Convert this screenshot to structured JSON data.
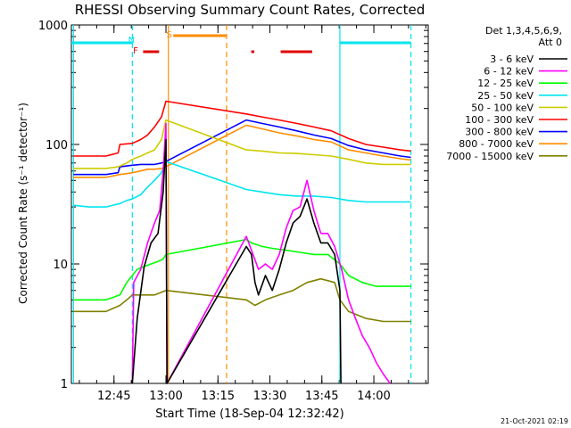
{
  "chart_data": {
    "type": "line",
    "title": "RHESSI Observing Summary Count Rates, Corrected",
    "xlabel": "Start Time (18-Sep-04 12:32:42)",
    "ylabel": "Corrected Count Rate (s⁻¹ detector⁻¹)",
    "yscale": "log",
    "ylim": [
      1,
      1000
    ],
    "xlim_minutes_after_start": [
      0,
      103
    ],
    "x_ticks": [
      "12:45",
      "13:00",
      "13:15",
      "13:30",
      "13:45",
      "14:00"
    ],
    "x_tick_minutes_after_start": [
      12.3,
      27.3,
      42.3,
      57.3,
      72.3,
      87.3
    ],
    "y_ticks": [
      "1",
      "10",
      "100",
      "1000"
    ],
    "y_tick_values": [
      1,
      10,
      100,
      1000
    ],
    "legend_header": [
      "Det 1,3,4,5,6,9,",
      "Att 0"
    ],
    "legend_position": "right, outside plot",
    "date_stamp": "21-Oct-2021 02:19",
    "markers": {
      "N": {
        "label": "N",
        "minute": 17.6,
        "color": "#00e5ee"
      },
      "S": {
        "label": "S",
        "minute": 28.5,
        "color": "#ff8c00"
      },
      "F": {
        "label": "F",
        "minute": 18.8,
        "color": "#e00000"
      }
    },
    "segments": [
      {
        "name": "night",
        "color": "#00e5ee",
        "ranges": [
          [
            0,
            17.6
          ],
          [
            77.5,
            98.0
          ]
        ]
      },
      {
        "name": "saa",
        "color": "#ff8c00",
        "ranges": [
          [
            29.4,
            44.8
          ]
        ]
      },
      {
        "name": "flare",
        "color": "#e00000",
        "ranges": [
          [
            20.7,
            25.3
          ],
          [
            51.9,
            52.8
          ],
          [
            60.4,
            69.5
          ]
        ]
      }
    ],
    "vlines": [
      {
        "minute": 0.6,
        "color": "#00e5ee",
        "style": "solid"
      },
      {
        "minute": 17.6,
        "color": "#00e5ee",
        "style": "dashed"
      },
      {
        "minute": 28.0,
        "color": "#ff8c00",
        "style": "solid"
      },
      {
        "minute": 44.8,
        "color": "#ff8c00",
        "style": "dashed"
      },
      {
        "minute": 77.5,
        "color": "#00e5ee",
        "style": "solid"
      },
      {
        "minute": 98.0,
        "color": "#00e5ee",
        "style": "dashed"
      }
    ],
    "series": [
      {
        "name": "3 - 6 keV",
        "color": "#000000",
        "points": [
          [
            17.6,
            1
          ],
          [
            19,
            3.5
          ],
          [
            21,
            9.5
          ],
          [
            23,
            15
          ],
          [
            25,
            18
          ],
          [
            26.5,
            40
          ],
          [
            27.3,
            110
          ],
          [
            27.6,
            1
          ],
          [
            50.5,
            14
          ],
          [
            52,
            12
          ],
          [
            53,
            7
          ],
          [
            54,
            5.5
          ],
          [
            56,
            8
          ],
          [
            58,
            6
          ],
          [
            60,
            9
          ],
          [
            62,
            15
          ],
          [
            64,
            22
          ],
          [
            66,
            25
          ],
          [
            68,
            35
          ],
          [
            70,
            22
          ],
          [
            72,
            15
          ],
          [
            74,
            15
          ],
          [
            76,
            12
          ],
          [
            77.5,
            6
          ],
          [
            77.8,
            1
          ]
        ]
      },
      {
        "name": "6 - 12 keV",
        "color": "#ff00ff",
        "points": [
          [
            17.6,
            1
          ],
          [
            18,
            7
          ],
          [
            20,
            9
          ],
          [
            22,
            15
          ],
          [
            24,
            22
          ],
          [
            25.5,
            28
          ],
          [
            26.5,
            60
          ],
          [
            27.3,
            150
          ],
          [
            27.6,
            1
          ],
          [
            50.5,
            17
          ],
          [
            52,
            13
          ],
          [
            54,
            9
          ],
          [
            56,
            10
          ],
          [
            58,
            9
          ],
          [
            60,
            12
          ],
          [
            62,
            20
          ],
          [
            64,
            28
          ],
          [
            66,
            30
          ],
          [
            68,
            50
          ],
          [
            70,
            28
          ],
          [
            72,
            18
          ],
          [
            74,
            18
          ],
          [
            76,
            14
          ],
          [
            78,
            9
          ],
          [
            80,
            5
          ],
          [
            82,
            3.5
          ],
          [
            84,
            2.5
          ],
          [
            86,
            2
          ],
          [
            88,
            1.5
          ],
          [
            90,
            1.2
          ],
          [
            92,
            1
          ]
        ]
      },
      {
        "name": "12 - 25 keV",
        "color": "#00ff00",
        "points": [
          [
            0.6,
            5
          ],
          [
            5,
            5
          ],
          [
            10,
            5
          ],
          [
            14,
            5.5
          ],
          [
            16,
            7
          ],
          [
            17.6,
            8
          ],
          [
            19,
            9
          ],
          [
            21,
            9.5
          ],
          [
            23,
            10
          ],
          [
            25,
            10.5
          ],
          [
            26.5,
            11
          ],
          [
            27.3,
            12
          ],
          [
            50.5,
            16
          ],
          [
            52,
            15
          ],
          [
            55,
            14
          ],
          [
            58,
            13.5
          ],
          [
            62,
            13
          ],
          [
            66,
            12.5
          ],
          [
            70,
            12
          ],
          [
            74,
            12
          ],
          [
            77.5,
            10
          ],
          [
            80,
            8
          ],
          [
            84,
            7
          ],
          [
            88,
            6.5
          ],
          [
            92,
            6.5
          ],
          [
            98,
            6.5
          ]
        ]
      },
      {
        "name": "25 - 50 keV",
        "color": "#00e5ee",
        "points": [
          [
            0.6,
            31
          ],
          [
            5,
            30
          ],
          [
            10,
            30
          ],
          [
            14,
            32
          ],
          [
            16,
            34
          ],
          [
            17.6,
            35
          ],
          [
            20,
            38
          ],
          [
            22,
            44
          ],
          [
            24,
            50
          ],
          [
            26,
            58
          ],
          [
            27.3,
            72
          ],
          [
            50.5,
            42
          ],
          [
            55,
            40
          ],
          [
            60,
            38
          ],
          [
            65,
            37
          ],
          [
            70,
            37
          ],
          [
            75,
            36
          ],
          [
            80,
            34
          ],
          [
            85,
            33
          ],
          [
            90,
            33
          ],
          [
            95,
            33
          ],
          [
            98,
            33
          ]
        ]
      },
      {
        "name": "50 - 100 keV",
        "color": "#cccc00",
        "points": [
          [
            0.6,
            63
          ],
          [
            5,
            63
          ],
          [
            10,
            63
          ],
          [
            13.5,
            65
          ],
          [
            16,
            70
          ],
          [
            17.6,
            75
          ],
          [
            20,
            80
          ],
          [
            22,
            85
          ],
          [
            24,
            90
          ],
          [
            26,
            110
          ],
          [
            27.3,
            160
          ],
          [
            50.5,
            90
          ],
          [
            55,
            88
          ],
          [
            60,
            85
          ],
          [
            65,
            84
          ],
          [
            70,
            82
          ],
          [
            75,
            80
          ],
          [
            80,
            75
          ],
          [
            85,
            70
          ],
          [
            90,
            68
          ],
          [
            95,
            68
          ],
          [
            98,
            68
          ]
        ]
      },
      {
        "name": "100 - 300 keV",
        "color": "#ff0000",
        "points": [
          [
            0.6,
            80
          ],
          [
            5,
            80
          ],
          [
            10,
            80
          ],
          [
            13.5,
            85
          ],
          [
            14,
            100
          ],
          [
            17.6,
            102
          ],
          [
            20,
            110
          ],
          [
            22,
            120
          ],
          [
            24,
            140
          ],
          [
            26,
            170
          ],
          [
            27.3,
            230
          ],
          [
            50.5,
            180
          ],
          [
            55,
            170
          ],
          [
            60,
            160
          ],
          [
            65,
            150
          ],
          [
            70,
            140
          ],
          [
            75,
            130
          ],
          [
            80,
            112
          ],
          [
            85,
            100
          ],
          [
            90,
            95
          ],
          [
            95,
            90
          ],
          [
            98,
            88
          ]
        ]
      },
      {
        "name": "300 - 800 keV",
        "color": "#0000ff",
        "points": [
          [
            0.6,
            56
          ],
          [
            5,
            56
          ],
          [
            10,
            56
          ],
          [
            13.5,
            58
          ],
          [
            14,
            65
          ],
          [
            17.6,
            67
          ],
          [
            20,
            68
          ],
          [
            22,
            68
          ],
          [
            24,
            68
          ],
          [
            26,
            70
          ],
          [
            27.3,
            72
          ],
          [
            50.5,
            160
          ],
          [
            55,
            150
          ],
          [
            60,
            140
          ],
          [
            65,
            130
          ],
          [
            70,
            120
          ],
          [
            75,
            112
          ],
          [
            80,
            98
          ],
          [
            85,
            90
          ],
          [
            90,
            85
          ],
          [
            95,
            80
          ],
          [
            98,
            78
          ]
        ]
      },
      {
        "name": "800 - 7000 keV",
        "color": "#ff8c00",
        "points": [
          [
            0.6,
            53
          ],
          [
            5,
            53
          ],
          [
            10,
            53
          ],
          [
            14,
            56
          ],
          [
            16,
            57
          ],
          [
            17.6,
            58
          ],
          [
            20,
            60
          ],
          [
            22,
            62
          ],
          [
            24,
            62
          ],
          [
            26,
            63
          ],
          [
            27.3,
            65
          ],
          [
            50.5,
            145
          ],
          [
            55,
            135
          ],
          [
            60,
            125
          ],
          [
            65,
            118
          ],
          [
            70,
            110
          ],
          [
            75,
            105
          ],
          [
            80,
            90
          ],
          [
            85,
            85
          ],
          [
            90,
            80
          ],
          [
            95,
            76
          ],
          [
            98,
            74
          ]
        ]
      },
      {
        "name": "7000 - 15000 keV",
        "color": "#808000",
        "points": [
          [
            0.6,
            4
          ],
          [
            5,
            4
          ],
          [
            10,
            4
          ],
          [
            14,
            4.5
          ],
          [
            16,
            5
          ],
          [
            17.6,
            5.5
          ],
          [
            20,
            5.5
          ],
          [
            22,
            5.5
          ],
          [
            24,
            5.5
          ],
          [
            26,
            5.8
          ],
          [
            27.3,
            6
          ],
          [
            50.5,
            5
          ],
          [
            53,
            4.5
          ],
          [
            56,
            5
          ],
          [
            60,
            5.5
          ],
          [
            64,
            6
          ],
          [
            68,
            7
          ],
          [
            72,
            7.5
          ],
          [
            76,
            7
          ],
          [
            77.5,
            5
          ],
          [
            80,
            4
          ],
          [
            85,
            3.5
          ],
          [
            90,
            3.3
          ],
          [
            95,
            3.3
          ],
          [
            98,
            3.3
          ]
        ]
      }
    ]
  }
}
